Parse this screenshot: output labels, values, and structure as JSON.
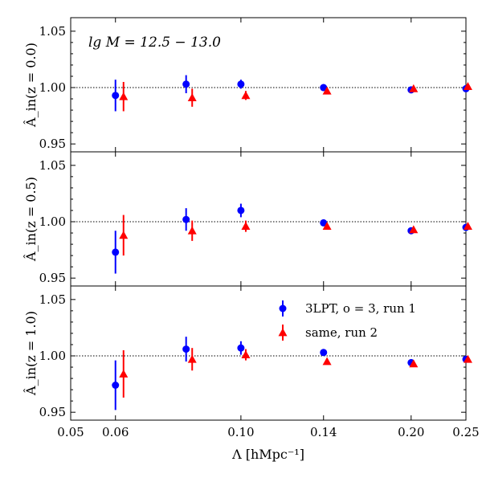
{
  "chart_data": {
    "type": "scatter",
    "x_label": "Λ [hMpc⁻¹]",
    "x_ticks": [
      0.05,
      0.06,
      0.1,
      0.14,
      0.2,
      0.25
    ],
    "x_tick_labels": [
      "0.05",
      "0.06",
      "0.10",
      "0.14",
      "0.20",
      "0.25"
    ],
    "xlim": [
      0.05,
      0.25
    ],
    "ylim": [
      0.943,
      1.062
    ],
    "y_ticks": [
      0.95,
      1.0,
      1.05
    ],
    "y_tick_labels": [
      "0.95",
      "1.00",
      "1.05"
    ],
    "reference_line": 1.0,
    "annotation": "lg M = 12.5 − 13.0",
    "legend": [
      {
        "label": "3LPT, o = 3, run 1",
        "color": "#0000ff",
        "marker": "circle"
      },
      {
        "label": "same, run 2",
        "color": "#ff0000",
        "marker": "triangle"
      }
    ],
    "panels": [
      {
        "ylabel": "Â_in(z = 0.0)",
        "series": [
          {
            "name": "3LPT, o = 3, run 1",
            "color": "#0000ff",
            "marker": "circle",
            "x": [
              0.06,
              0.08,
              0.1,
              0.14,
              0.2,
              0.25
            ],
            "y": [
              0.993,
              1.003,
              1.003,
              1.0,
              0.998,
              0.999
            ],
            "err": [
              0.014,
              0.008,
              0.004,
              0.002,
              0.001,
              0.001
            ]
          },
          {
            "name": "same, run 2",
            "color": "#ff0000",
            "marker": "triangle",
            "x": [
              0.062,
              0.082,
              0.102,
              0.142,
              0.202,
              0.252
            ],
            "y": [
              0.992,
              0.991,
              0.993,
              0.997,
              0.999,
              1.001
            ],
            "err": [
              0.013,
              0.008,
              0.004,
              0.002,
              0.001,
              0.001
            ]
          }
        ]
      },
      {
        "ylabel": "Â_in(z = 0.5)",
        "series": [
          {
            "name": "3LPT, o = 3, run 1",
            "color": "#0000ff",
            "marker": "circle",
            "x": [
              0.06,
              0.08,
              0.1,
              0.14,
              0.2,
              0.25
            ],
            "y": [
              0.973,
              1.002,
              1.01,
              0.999,
              0.992,
              0.995
            ],
            "err": [
              0.019,
              0.01,
              0.006,
              0.002,
              0.001,
              0.001
            ]
          },
          {
            "name": "same, run 2",
            "color": "#ff0000",
            "marker": "triangle",
            "x": [
              0.062,
              0.082,
              0.102,
              0.142,
              0.202,
              0.252
            ],
            "y": [
              0.988,
              0.992,
              0.996,
              0.996,
              0.993,
              0.996
            ],
            "err": [
              0.018,
              0.009,
              0.005,
              0.002,
              0.001,
              0.001
            ]
          }
        ]
      },
      {
        "ylabel": "Â_in(z = 1.0)",
        "series": [
          {
            "name": "3LPT, o = 3, run 1",
            "color": "#0000ff",
            "marker": "circle",
            "x": [
              0.06,
              0.08,
              0.1,
              0.14,
              0.2,
              0.25
            ],
            "y": [
              0.974,
              1.006,
              1.007,
              1.003,
              0.994,
              0.997
            ],
            "err": [
              0.022,
              0.011,
              0.006,
              0.002,
              0.001,
              0.001
            ]
          },
          {
            "name": "same, run 2",
            "color": "#ff0000",
            "marker": "triangle",
            "x": [
              0.062,
              0.082,
              0.102,
              0.142,
              0.202,
              0.252
            ],
            "y": [
              0.984,
              0.997,
              1.001,
              0.995,
              0.993,
              0.997
            ],
            "err": [
              0.021,
              0.01,
              0.005,
              0.002,
              0.001,
              0.001
            ]
          }
        ]
      }
    ]
  }
}
